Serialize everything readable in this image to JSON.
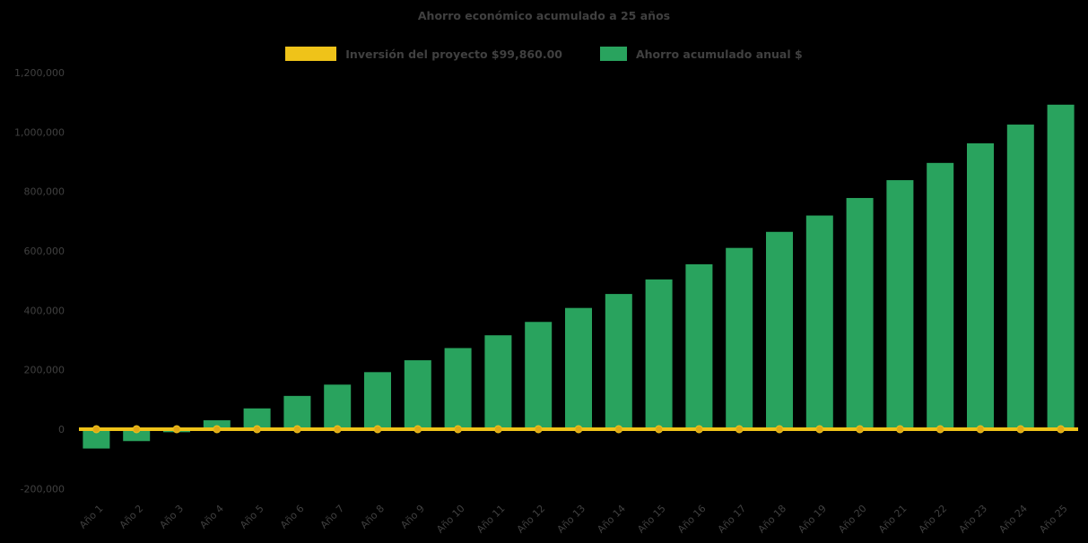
{
  "colors": {
    "background": "#000000",
    "text": "#404040",
    "bar_green": "#29A35E",
    "line_yellow": "#EFC319",
    "marker_yellow": "#E0A816"
  },
  "chart_data": {
    "type": "bar",
    "title": "Ahorro económico acumulado a 25 años",
    "legend_position": "top",
    "grid": false,
    "background": "#000000",
    "text_color": "#404040",
    "xlabel": "",
    "ylabel": "",
    "ylim": [
      -200000,
      1200000
    ],
    "y_ticks": [
      {
        "value": 1200000,
        "label": "1,200,000"
      },
      {
        "value": 1000000,
        "label": "1,000,000"
      },
      {
        "value": 800000,
        "label": "800,000"
      },
      {
        "value": 600000,
        "label": "600,000"
      },
      {
        "value": 400000,
        "label": "400,000"
      },
      {
        "value": 200000,
        "label": "200,000"
      },
      {
        "value": 0,
        "label": "0"
      },
      {
        "value": -200000,
        "label": "-200,000"
      }
    ],
    "categories": [
      "Año 1",
      "Año 2",
      "Año 3",
      "Año 4",
      "Año 5",
      "Año 6",
      "Año 7",
      "Año 8",
      "Año 9",
      "Año 10",
      "Año 11",
      "Año 12",
      "Año 13",
      "Año 14",
      "Año 15",
      "Año 16",
      "Año 17",
      "Año 18",
      "Año 19",
      "Año 20",
      "Año 21",
      "Año 22",
      "Año 23",
      "Año 24",
      "Año 25"
    ],
    "series": [
      {
        "name": "Ahorro acumulado anual $",
        "type": "bar",
        "color": "#29A35E",
        "values": [
          -65000,
          -40000,
          -10000,
          30000,
          70000,
          112000,
          150000,
          192000,
          232000,
          273000,
          316000,
          361000,
          408000,
          455000,
          504000,
          555000,
          610000,
          664000,
          719000,
          778000,
          838000,
          896000,
          962000,
          1025000,
          1092000
        ]
      },
      {
        "name": "Inversión del proyecto $99,860.00",
        "type": "line",
        "color": "#EFC319",
        "marker_color": "#E0A816",
        "constant_value": 0
      }
    ]
  }
}
